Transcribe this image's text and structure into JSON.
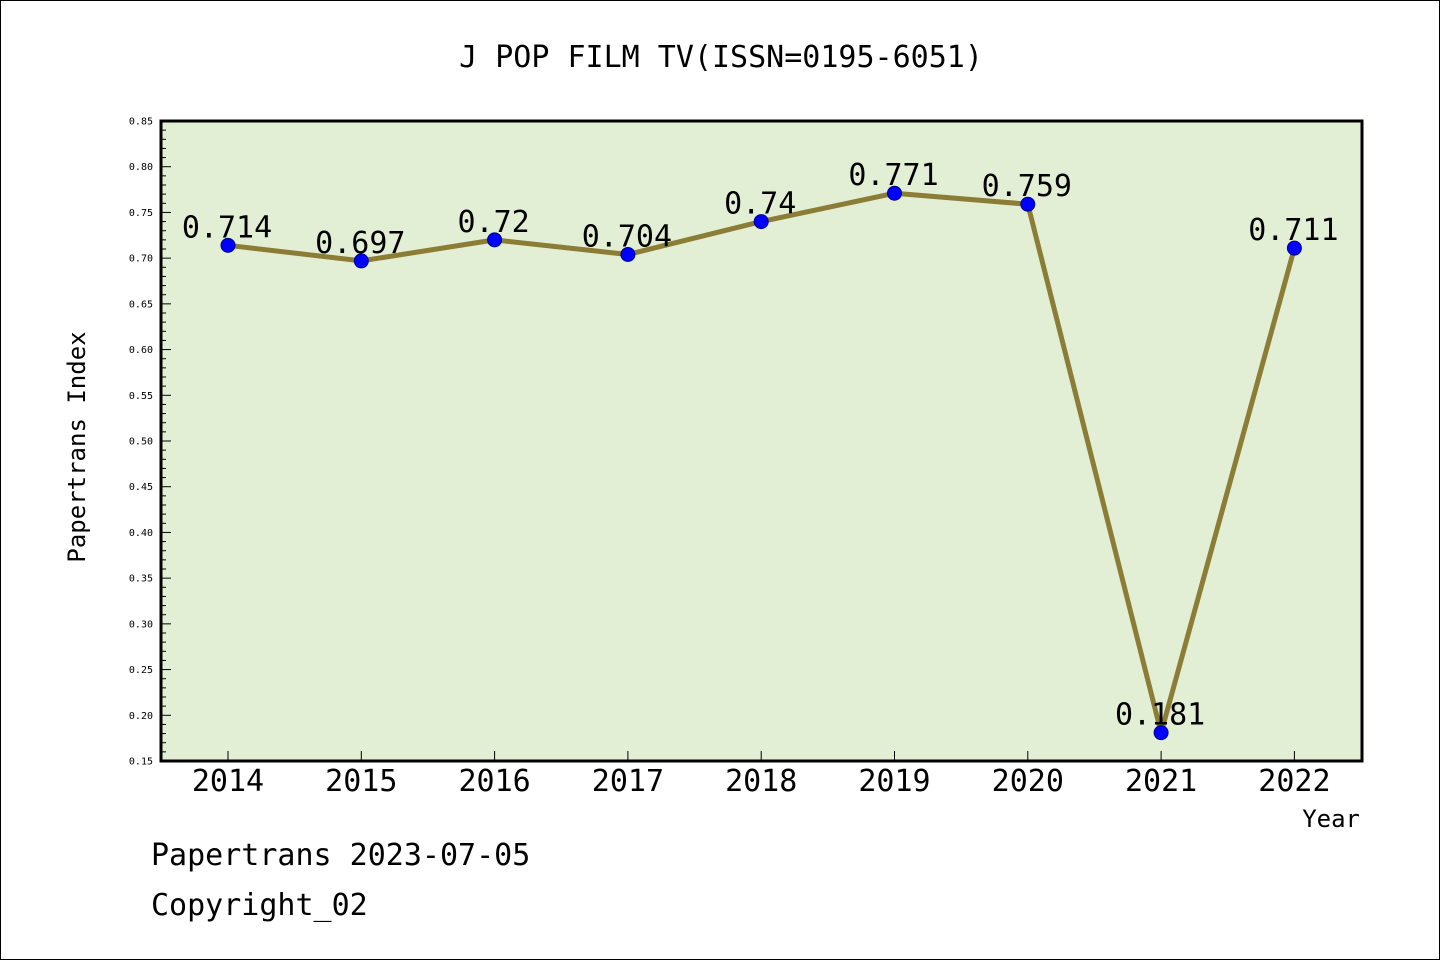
{
  "chart_data": {
    "type": "line",
    "title": "J POP FILM TV(ISSN=0195-6051)",
    "xlabel": "Year",
    "ylabel": "Papertrans Index",
    "categories": [
      "2014",
      "2015",
      "2016",
      "2017",
      "2018",
      "2019",
      "2020",
      "2021",
      "2022"
    ],
    "series": [
      {
        "values": [
          0.714,
          0.697,
          0.72,
          0.704,
          0.74,
          0.771,
          0.759,
          0.181,
          0.711
        ],
        "labels": [
          "0.714",
          "0.697",
          "0.72",
          "0.704",
          "0.74",
          "0.771",
          "0.759",
          "0.181",
          "0.711"
        ]
      }
    ],
    "ylim": [
      0.15,
      0.85
    ],
    "yticks": [
      "0.15",
      "0.20",
      "0.25",
      "0.30",
      "0.35",
      "0.40",
      "0.45",
      "0.50",
      "0.55",
      "0.60",
      "0.65",
      "0.70",
      "0.75",
      "0.80",
      "0.85"
    ],
    "grid": false,
    "legend": "none",
    "colors": {
      "plot_background": "#e2efd4",
      "line": "#8b7d36",
      "marker": "#0000ff",
      "axis": "#000000"
    }
  },
  "footer": {
    "line1": "Papertrans 2023-07-05",
    "line2": "Copyright_02"
  }
}
